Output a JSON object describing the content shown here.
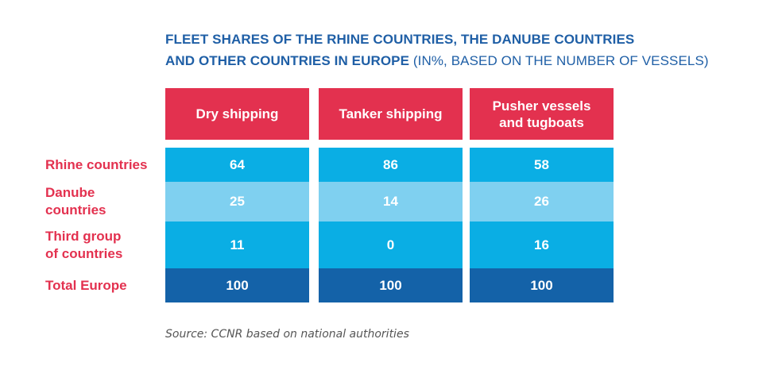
{
  "title": {
    "line1": "FLEET SHARES OF THE RHINE COUNTRIES, THE DANUBE COUNTRIES",
    "line2_bold": "AND OTHER COUNTRIES IN EUROPE",
    "line2_light": " (IN%, BASED ON THE NUMBER OF VESSELS)"
  },
  "colors": {
    "header": "#e3314f",
    "row_blue": "#0aaee4",
    "row_light_blue": "#7fd0f0",
    "row_total": "#1462a8",
    "title": "#1f5fa6"
  },
  "chart_data": {
    "type": "table",
    "columns": [
      "Dry shipping",
      "Tanker shipping",
      "Pusher vessels and tugboats"
    ],
    "rows": [
      {
        "label": "Rhine countries",
        "values": [
          64,
          86,
          58
        ]
      },
      {
        "label": "Danube countries",
        "values": [
          25,
          14,
          26
        ]
      },
      {
        "label": "Third group of countries",
        "values": [
          11,
          0,
          16
        ]
      },
      {
        "label": "Total Europe",
        "values": [
          100,
          100,
          100
        ]
      }
    ]
  },
  "source": "Source: CCNR based on national authorities"
}
